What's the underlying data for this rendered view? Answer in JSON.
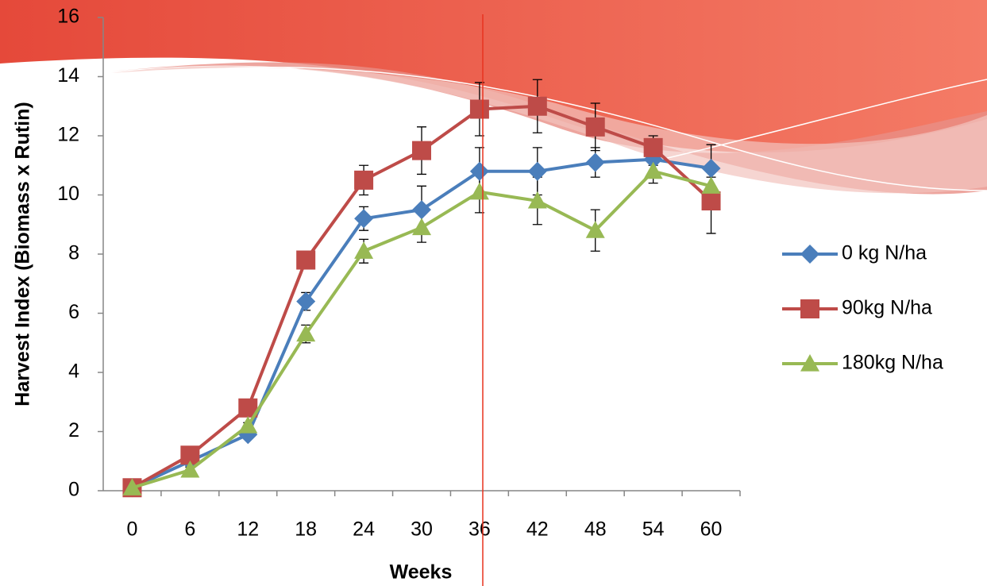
{
  "chart_data": {
    "type": "line",
    "x_label": "Weeks",
    "y_label": "Harvest Index (Biomass x Rutin)",
    "categories": [
      "0",
      "6",
      "12",
      "18",
      "24",
      "30",
      "36",
      "42",
      "48",
      "54",
      "60"
    ],
    "ylim": [
      0,
      16
    ],
    "yticks": [
      0,
      2,
      4,
      6,
      8,
      10,
      12,
      14,
      16
    ],
    "series": [
      {
        "name": "0 kg N/ha",
        "color": "#4a7ebb",
        "marker": "diamond",
        "values": [
          0.1,
          1.0,
          1.9,
          6.4,
          9.2,
          9.5,
          10.8,
          10.8,
          11.1,
          11.2,
          10.9
        ],
        "errors": [
          0.1,
          0.1,
          0.1,
          0.3,
          0.4,
          0.8,
          0.8,
          0.8,
          0.5,
          0.2,
          0.8
        ]
      },
      {
        "name": "90kg N/ha",
        "color": "#be4b48",
        "marker": "square",
        "values": [
          0.1,
          1.2,
          2.8,
          7.8,
          10.5,
          11.5,
          12.9,
          13.0,
          12.3,
          11.6,
          9.8
        ],
        "errors": [
          0.1,
          0.1,
          0.1,
          0.3,
          0.5,
          0.8,
          0.9,
          0.9,
          0.8,
          0.4,
          1.1
        ]
      },
      {
        "name": "180kg N/ha",
        "color": "#98b954",
        "marker": "triangle",
        "values": [
          0.1,
          0.7,
          2.2,
          5.3,
          8.1,
          8.9,
          10.1,
          9.8,
          8.8,
          10.8,
          10.3
        ],
        "errors": [
          0.1,
          0.1,
          0.1,
          0.3,
          0.4,
          0.5,
          0.7,
          0.8,
          0.7,
          0.4,
          0.3
        ]
      }
    ]
  }
}
